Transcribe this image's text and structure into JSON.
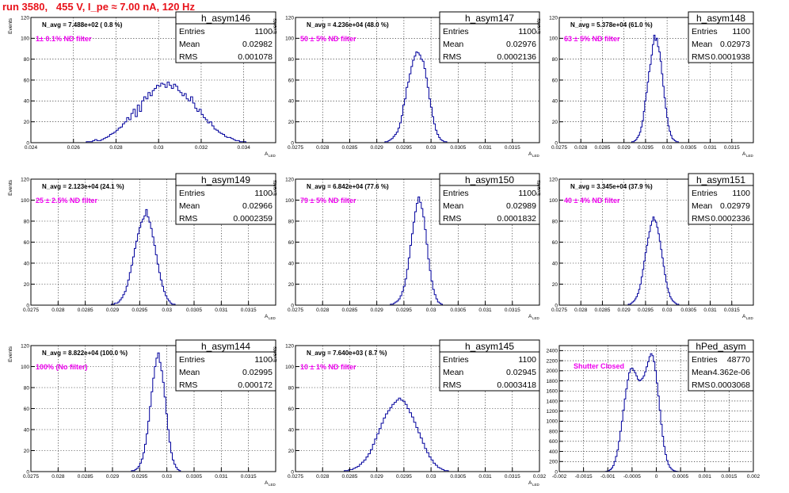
{
  "page_title": "run 3580,   455 V, I_pe ≈ 7.00 nA, 120 Hz",
  "colors": {
    "histogram": "#00009c",
    "title": "#e8121a",
    "annotation": "#ee00ee"
  },
  "chart_data": [
    {
      "type": "histogram",
      "name": "h_asym146",
      "stats": [
        [
          "Entries",
          "1100"
        ],
        [
          "Mean",
          "0.02982"
        ],
        [
          "RMS",
          "0.001078"
        ]
      ],
      "navg": "N_avg = 7.488e+02 ( 0.8 %)",
      "filter": "1± 0.1% ND filter",
      "xlabel": "A",
      "xlabel_sub": "LED",
      "ylabel": "Events",
      "xlim": [
        0.024,
        0.0355
      ],
      "ylim": [
        0,
        120
      ],
      "xticks": [
        0.024,
        0.026,
        0.028,
        0.03,
        0.032,
        0.034
      ],
      "xtick_labels": [
        "0.024",
        "0.026",
        "0.028",
        "0.03",
        "0.032",
        "0.034"
      ],
      "yticks": [
        0,
        20,
        40,
        60,
        80,
        100,
        120
      ],
      "bins": {
        "start": 0.0265,
        "width": 0.0001,
        "counts": [
          0,
          1,
          1,
          1,
          2,
          3,
          2,
          2,
          3,
          4,
          5,
          6,
          8,
          9,
          10,
          12,
          14,
          15,
          18,
          20,
          24,
          22,
          28,
          32,
          25,
          36,
          30,
          40,
          44,
          42,
          48,
          45,
          50,
          52,
          55,
          54,
          57,
          56,
          53,
          58,
          55,
          52,
          56,
          54,
          50,
          48,
          45,
          47,
          42,
          40,
          44,
          38,
          33,
          30,
          32,
          27,
          24,
          22,
          19,
          20,
          16,
          13,
          12,
          10,
          9,
          8,
          6,
          5,
          5,
          4,
          3,
          2,
          2,
          1,
          1,
          1
        ]
      }
    },
    {
      "type": "histogram",
      "name": "h_asym147",
      "stats": [
        [
          "Entries",
          "1100"
        ],
        [
          "Mean",
          "0.02976"
        ],
        [
          "RMS",
          "0.0002136"
        ]
      ],
      "navg": "N_avg = 4.236e+04 (48.0 %)",
      "filter": "50 ± 5% ND filter",
      "xlabel": "A",
      "xlabel_sub": "LED",
      "ylabel": "Events",
      "xlim": [
        0.0275,
        0.032
      ],
      "ylim": [
        0,
        120
      ],
      "xticks": [
        0.0275,
        0.028,
        0.0285,
        0.029,
        0.0295,
        0.03,
        0.0305,
        0.031,
        0.0315
      ],
      "xtick_labels": [
        "0.0275",
        "0.028",
        "0.0285",
        "0.029",
        "0.0295",
        "0.03",
        "0.0305",
        "0.031",
        "0.0315"
      ],
      "yticks": [
        0,
        20,
        40,
        60,
        80,
        100,
        120
      ],
      "bins": {
        "start": 0.02915,
        "width": 3e-05,
        "counts": [
          1,
          1,
          2,
          3,
          4,
          6,
          8,
          10,
          14,
          19,
          26,
          36,
          42,
          53,
          58,
          66,
          73,
          79,
          83,
          87,
          86,
          84,
          80,
          78,
          71,
          62,
          53,
          42,
          34,
          25,
          18,
          12,
          8,
          5,
          3,
          2,
          1,
          1
        ]
      }
    },
    {
      "type": "histogram",
      "name": "h_asym148",
      "stats": [
        [
          "Entries",
          "1100"
        ],
        [
          "Mean",
          "0.02973"
        ],
        [
          "RMS",
          "0.0001938"
        ]
      ],
      "navg": "N_avg = 5.378e+04 (61.0 %)",
      "filter": "63 ± 5% ND filter",
      "xlabel": "A",
      "xlabel_sub": "LED",
      "ylabel": "Events",
      "xlim": [
        0.0275,
        0.032
      ],
      "ylim": [
        0,
        120
      ],
      "xticks": [
        0.0275,
        0.028,
        0.0285,
        0.029,
        0.0295,
        0.03,
        0.0305,
        0.031,
        0.0315
      ],
      "xtick_labels": [
        "0.0275",
        "0.028",
        "0.0285",
        "0.029",
        "0.0295",
        "0.03",
        "0.0305",
        "0.031",
        "0.0315"
      ],
      "yticks": [
        0,
        20,
        40,
        60,
        80,
        100,
        120
      ],
      "bins": {
        "start": 0.02915,
        "width": 3e-05,
        "counts": [
          0,
          1,
          1,
          2,
          3,
          5,
          7,
          10,
          15,
          21,
          30,
          40,
          48,
          58,
          68,
          75,
          84,
          94,
          103,
          98,
          100,
          92,
          87,
          78,
          66,
          54,
          43,
          33,
          24,
          16,
          11,
          7,
          4,
          3,
          2,
          1,
          1
        ]
      }
    },
    {
      "type": "histogram",
      "name": "h_asym149",
      "stats": [
        [
          "Entries",
          "1100"
        ],
        [
          "Mean",
          "0.02966"
        ],
        [
          "RMS",
          "0.0002359"
        ]
      ],
      "navg": "N_avg = 2.123e+04 (24.1 %)",
      "filter": "25 ± 2.5% ND filter",
      "xlabel": "A",
      "xlabel_sub": "LED",
      "ylabel": "Events",
      "xlim": [
        0.0275,
        0.032
      ],
      "ylim": [
        0,
        120
      ],
      "xticks": [
        0.0275,
        0.028,
        0.0285,
        0.029,
        0.0295,
        0.03,
        0.0305,
        0.031,
        0.0315
      ],
      "xtick_labels": [
        "0.0275",
        "0.028",
        "0.0285",
        "0.029",
        "0.0295",
        "0.03",
        "0.0305",
        "0.031",
        "0.0315"
      ],
      "yticks": [
        0,
        20,
        40,
        60,
        80,
        100,
        120
      ],
      "bins": {
        "start": 0.02895,
        "width": 3e-05,
        "counts": [
          0,
          1,
          1,
          2,
          2,
          3,
          5,
          7,
          10,
          13,
          18,
          24,
          31,
          38,
          46,
          54,
          61,
          68,
          74,
          79,
          82,
          85,
          91,
          84,
          79,
          73,
          65,
          57,
          48,
          39,
          31,
          24,
          18,
          13,
          9,
          6,
          4,
          2,
          1,
          1
        ]
      }
    },
    {
      "type": "histogram",
      "name": "h_asym150",
      "stats": [
        [
          "Entries",
          "1100"
        ],
        [
          "Mean",
          "0.02989"
        ],
        [
          "RMS",
          "0.0001832"
        ]
      ],
      "navg": "N_avg = 6.842e+04 (77.6 %)",
      "filter": "79 ± 5% ND filter",
      "xlabel": "A",
      "xlabel_sub": "LED",
      "ylabel": "Events",
      "xlim": [
        0.0275,
        0.032
      ],
      "ylim": [
        0,
        120
      ],
      "xticks": [
        0.0275,
        0.028,
        0.0285,
        0.029,
        0.0295,
        0.03,
        0.0305,
        0.031,
        0.0315
      ],
      "xtick_labels": [
        "0.0275",
        "0.028",
        "0.0285",
        "0.029",
        "0.0295",
        "0.03",
        "0.0305",
        "0.031",
        "0.0315"
      ],
      "yticks": [
        0,
        20,
        40,
        60,
        80,
        100,
        120
      ],
      "bins": {
        "start": 0.02925,
        "width": 3e-05,
        "counts": [
          1,
          1,
          2,
          3,
          4,
          6,
          9,
          13,
          18,
          25,
          34,
          45,
          57,
          68,
          79,
          89,
          97,
          103,
          98,
          92,
          84,
          72,
          58,
          44,
          33,
          23,
          15,
          10,
          6,
          3,
          2,
          1
        ]
      }
    },
    {
      "type": "histogram",
      "name": "h_asym151",
      "stats": [
        [
          "Entries",
          "1100"
        ],
        [
          "Mean",
          "0.02979"
        ],
        [
          "RMS",
          "0.0002336"
        ]
      ],
      "navg": "N_avg = 3.345e+04 (37.9 %)",
      "filter": "40 ± 4% ND filter",
      "xlabel": "A",
      "xlabel_sub": "LED",
      "ylabel": "Events",
      "xlim": [
        0.0275,
        0.032
      ],
      "ylim": [
        0,
        120
      ],
      "xticks": [
        0.0275,
        0.028,
        0.0285,
        0.029,
        0.0295,
        0.03,
        0.0305,
        0.031,
        0.0315
      ],
      "xtick_labels": [
        "0.0275",
        "0.028",
        "0.0285",
        "0.029",
        "0.0295",
        "0.03",
        "0.0305",
        "0.031",
        "0.0315"
      ],
      "yticks": [
        0,
        20,
        40,
        60,
        80,
        100,
        120
      ],
      "bins": {
        "start": 0.0291,
        "width": 3e-05,
        "counts": [
          1,
          1,
          2,
          3,
          4,
          6,
          8,
          11,
          15,
          20,
          27,
          34,
          42,
          50,
          57,
          64,
          70,
          76,
          80,
          84,
          81,
          79,
          74,
          68,
          61,
          53,
          45,
          37,
          29,
          22,
          16,
          12,
          8,
          6,
          4,
          3,
          2,
          1,
          1
        ]
      }
    },
    {
      "type": "histogram",
      "name": "h_asym144",
      "stats": [
        [
          "Entries",
          "1100"
        ],
        [
          "Mean",
          "0.02995"
        ],
        [
          "RMS",
          "0.000172"
        ]
      ],
      "navg": "N_avg = 8.822e+04 (100.0 %)",
      "filter": "100% (No filter)",
      "xlabel": "A",
      "xlabel_sub": "LED",
      "ylabel": "Events",
      "xlim": [
        0.0275,
        0.032
      ],
      "ylim": [
        0,
        120
      ],
      "xticks": [
        0.0275,
        0.028,
        0.0285,
        0.029,
        0.0295,
        0.03,
        0.0305,
        0.031,
        0.0315
      ],
      "xtick_labels": [
        "0.0275",
        "0.028",
        "0.0285",
        "0.029",
        "0.0295",
        "0.03",
        "0.0305",
        "0.031",
        "0.0315"
      ],
      "yticks": [
        0,
        20,
        40,
        60,
        80,
        100,
        120
      ],
      "bins": {
        "start": 0.02935,
        "width": 3e-05,
        "counts": [
          1,
          1,
          2,
          3,
          5,
          8,
          12,
          18,
          26,
          36,
          48,
          62,
          76,
          89,
          100,
          108,
          113,
          104,
          96,
          85,
          71,
          55,
          40,
          28,
          18,
          11,
          7,
          4,
          2,
          1
        ]
      }
    },
    {
      "type": "histogram",
      "name": "h_asym145",
      "stats": [
        [
          "Entries",
          "1100"
        ],
        [
          "Mean",
          "0.02945"
        ],
        [
          "RMS",
          "0.0003418"
        ]
      ],
      "navg": "N_avg = 7.640e+03 ( 8.7 %)",
      "filter": "10 ± 1% ND filter",
      "xlabel": "A",
      "xlabel_sub": "LED",
      "ylabel": "Events",
      "xlim": [
        0.0275,
        0.032
      ],
      "ylim": [
        0,
        120
      ],
      "xticks": [
        0.0275,
        0.028,
        0.0285,
        0.029,
        0.0295,
        0.03,
        0.0305,
        0.031,
        0.0315,
        0.032
      ],
      "xtick_labels": [
        "0.0275",
        "0.028",
        "0.0285",
        "0.029",
        "0.0295",
        "0.03",
        "0.0305",
        "0.031",
        "0.0315",
        "0.032"
      ],
      "yticks": [
        0,
        20,
        40,
        60,
        80,
        100,
        120
      ],
      "bins": {
        "start": 0.0284,
        "width": 4e-05,
        "counts": [
          1,
          1,
          2,
          2,
          3,
          4,
          5,
          7,
          9,
          11,
          14,
          17,
          21,
          26,
          31,
          36,
          41,
          46,
          51,
          55,
          58,
          61,
          64,
          66,
          68,
          70,
          68,
          67,
          64,
          60,
          56,
          52,
          47,
          42,
          37,
          32,
          27,
          22,
          18,
          14,
          11,
          8,
          6,
          4,
          3,
          2,
          1,
          1
        ]
      }
    },
    {
      "type": "histogram",
      "name": "hPed_asym",
      "stats": [
        [
          "Entries",
          "48770"
        ],
        [
          "Mean",
          "-4.362e-06"
        ],
        [
          "RMS",
          "0.0003068"
        ]
      ],
      "navg": "",
      "filter": "Shutter Closed",
      "xlabel": "",
      "xlabel_sub": "",
      "ylabel": "",
      "xlim": [
        -0.002,
        0.002
      ],
      "ylim": [
        0,
        2500
      ],
      "xticks": [
        -0.002,
        -0.0015,
        -0.001,
        -0.0005,
        0,
        0.0005,
        0.001,
        0.0015,
        0.002
      ],
      "xtick_labels": [
        "-0.002",
        "-0.0015",
        "-0.001",
        "-0.0005",
        "0",
        "0.0005",
        "0.001",
        "0.0015",
        "0.002"
      ],
      "yticks": [
        0,
        200,
        400,
        600,
        800,
        1000,
        1200,
        1400,
        1600,
        1800,
        2000,
        2200,
        2400
      ],
      "bins": {
        "start": -0.00105,
        "width": 3e-05,
        "counts": [
          5,
          10,
          20,
          40,
          70,
          120,
          200,
          300,
          430,
          600,
          800,
          1000,
          1220,
          1440,
          1640,
          1820,
          1960,
          2040,
          2050,
          2010,
          1960,
          1900,
          1830,
          1800,
          1820,
          1850,
          1900,
          1980,
          2080,
          2180,
          2280,
          2340,
          2300,
          2180,
          2000,
          1760,
          1500,
          1220,
          940,
          700,
          500,
          340,
          220,
          140,
          85,
          50,
          30,
          15,
          8,
          4
        ]
      }
    }
  ]
}
